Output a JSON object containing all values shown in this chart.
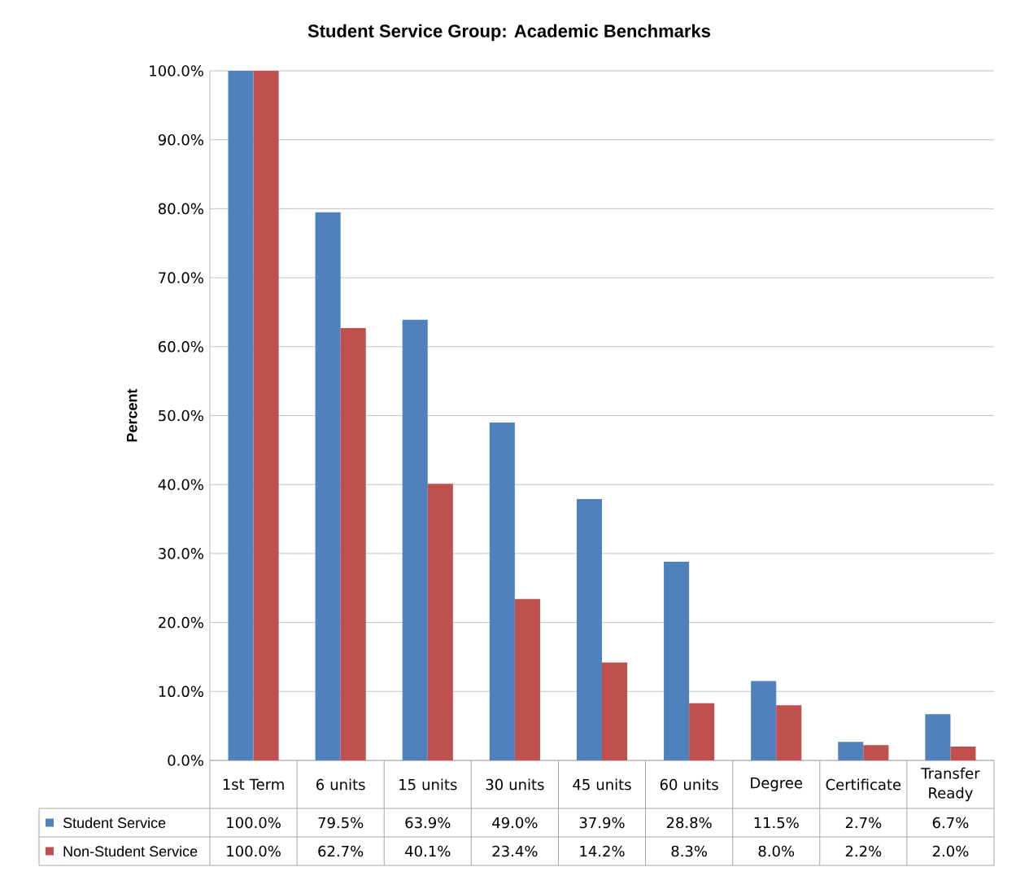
{
  "chart_data": {
    "type": "bar",
    "title": "Student Service Group: Academic Benchmarks",
    "ylabel": "Percent",
    "categories": [
      "1st Term",
      "6 units",
      "15 units",
      "30 units",
      "45 units",
      "60 units",
      "Degree",
      "Certificate",
      "Transfer Ready"
    ],
    "series": [
      {
        "name": "Student Service",
        "color": "#4f81bd",
        "values": [
          100.0,
          79.5,
          63.9,
          49.0,
          37.9,
          28.8,
          11.5,
          2.7,
          6.7
        ],
        "value_labels": [
          "100.0%",
          "79.5%",
          "63.9%",
          "49.0%",
          "37.9%",
          "28.8%",
          "11.5%",
          "2.7%",
          "6.7%"
        ]
      },
      {
        "name": "Non-Student Service",
        "color": "#c0504d",
        "values": [
          100.0,
          62.7,
          40.1,
          23.4,
          14.2,
          8.3,
          8.0,
          2.2,
          2.0
        ],
        "value_labels": [
          "100.0%",
          "62.7%",
          "40.1%",
          "23.4%",
          "14.2%",
          "8.3%",
          "8.0%",
          "2.2%",
          "2.0%"
        ]
      }
    ],
    "ylim": [
      0,
      100
    ],
    "yticks": [
      {
        "value": 0,
        "label": "0.0%"
      },
      {
        "value": 10,
        "label": "10.0%"
      },
      {
        "value": 20,
        "label": "20.0%"
      },
      {
        "value": 30,
        "label": "30.0%"
      },
      {
        "value": 40,
        "label": "40.0%"
      },
      {
        "value": 50,
        "label": "50.0%"
      },
      {
        "value": 60,
        "label": "60.0%"
      },
      {
        "value": 70,
        "label": "70.0%"
      },
      {
        "value": 80,
        "label": "80.0%"
      },
      {
        "value": 90,
        "label": "90.0%"
      },
      {
        "value": 100,
        "label": "100.0%"
      }
    ],
    "grid": "y",
    "legend": "bottom"
  }
}
